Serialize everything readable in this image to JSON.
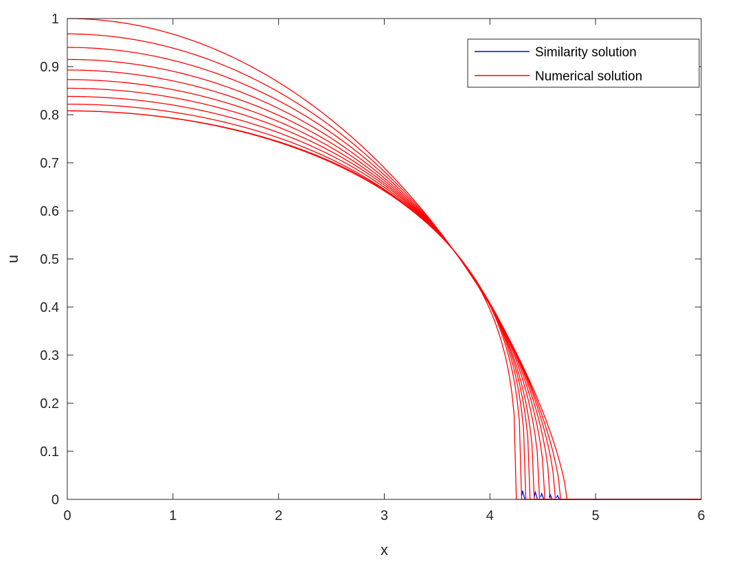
{
  "chart_data": {
    "type": "line",
    "title": "",
    "xlabel": "x",
    "ylabel": "u",
    "xlim": [
      0,
      6
    ],
    "ylim": [
      0,
      1
    ],
    "xticks": [
      "0",
      "1",
      "2",
      "3",
      "4",
      "5",
      "6"
    ],
    "yticks": [
      "0",
      "0.1",
      "0.2",
      "0.3",
      "0.4",
      "0.5",
      "0.6",
      "0.7",
      "0.8",
      "0.9",
      "1"
    ],
    "grid": false,
    "legend": {
      "placement": "top-right",
      "entries": [
        {
          "label": "Similarity solution",
          "color": "#0000ff"
        },
        {
          "label": "Numerical solution",
          "color": "#ff0000"
        }
      ]
    },
    "series": [
      {
        "kind": "numerical",
        "color": "#ff0000",
        "front_x": 4.73,
        "u_at_0": 1.0
      },
      {
        "kind": "numerical",
        "color": "#ff0000",
        "front_x": 4.67,
        "u_at_0": 0.968
      },
      {
        "kind": "numerical",
        "color": "#ff0000",
        "front_x": 4.62,
        "u_at_0": 0.94
      },
      {
        "kind": "numerical",
        "color": "#ff0000",
        "front_x": 4.57,
        "u_at_0": 0.915
      },
      {
        "kind": "numerical",
        "color": "#ff0000",
        "front_x": 4.52,
        "u_at_0": 0.893
      },
      {
        "kind": "numerical",
        "color": "#ff0000",
        "front_x": 4.47,
        "u_at_0": 0.873
      },
      {
        "kind": "numerical",
        "color": "#ff0000",
        "front_x": 4.42,
        "u_at_0": 0.855
      },
      {
        "kind": "numerical",
        "color": "#ff0000",
        "front_x": 4.38,
        "u_at_0": 0.838
      },
      {
        "kind": "numerical",
        "color": "#ff0000",
        "front_x": 4.34,
        "u_at_0": 0.822
      },
      {
        "kind": "numerical",
        "color": "#ff0000",
        "front_x": 4.3,
        "u_at_0": 0.808
      },
      {
        "kind": "numerical",
        "color": "#ff0000",
        "front_x": 4.25,
        "u_at_0": 0.808
      },
      {
        "kind": "similarity",
        "color": "#0000ff",
        "front_x": 4.31,
        "u_at_front": 0.018
      },
      {
        "kind": "similarity",
        "color": "#0000ff",
        "front_x": 4.43,
        "u_at_front": 0.015
      },
      {
        "kind": "similarity",
        "color": "#0000ff",
        "front_x": 4.49,
        "u_at_front": 0.012
      },
      {
        "kind": "similarity",
        "color": "#0000ff",
        "front_x": 4.57,
        "u_at_front": 0.01
      },
      {
        "kind": "similarity",
        "color": "#0000ff",
        "front_x": 4.64,
        "u_at_front": 0.008
      }
    ]
  }
}
